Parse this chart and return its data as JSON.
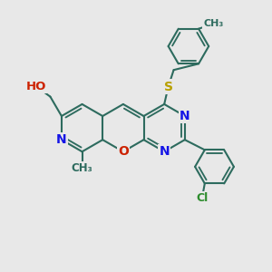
{
  "bg": "#e8e8e8",
  "bond_color": "#2d6b5e",
  "bond_lw": 1.5,
  "atom_colors": {
    "N": "#1414e6",
    "O": "#cc2200",
    "S": "#b8a000",
    "Cl": "#2d8c2d",
    "C": "#2d6b5e"
  },
  "figsize": [
    3.0,
    3.0
  ],
  "dpi": 100,
  "xlim": [
    0,
    10
  ],
  "ylim": [
    0,
    10
  ]
}
